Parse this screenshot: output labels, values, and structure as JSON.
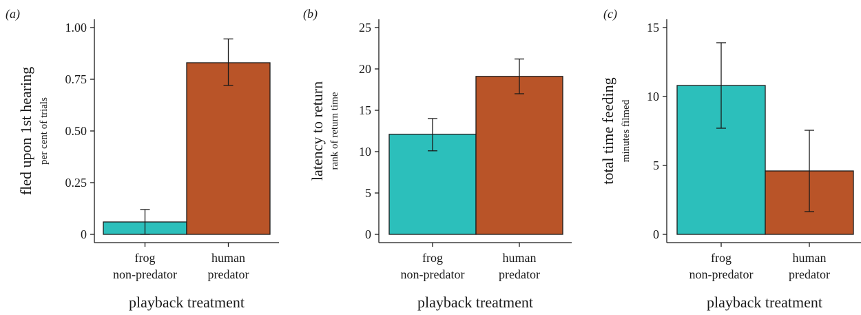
{
  "chart_data": [
    {
      "type": "bar",
      "panel_label": "(a)",
      "categories": [
        "frog\nnon-predator",
        "human\npredator"
      ],
      "values": [
        0.06,
        0.83
      ],
      "errors": [
        [
          0.0,
          0.12
        ],
        [
          0.72,
          0.945
        ]
      ],
      "colors": [
        "#2cbfbb",
        "#b95428"
      ],
      "xlabel": "playback treatment",
      "ylabel": "fled upon 1st hearing",
      "ylabel_sub": "per cent of trials",
      "ylim": [
        0,
        1.0
      ],
      "yticks": [
        0,
        0.25,
        0.5,
        0.75,
        1.0
      ],
      "ytick_labels": [
        "0",
        "0.25",
        "0.50",
        "0.75",
        "1.00"
      ]
    },
    {
      "type": "bar",
      "panel_label": "(b)",
      "categories": [
        "frog\nnon-predator",
        "human\npredator"
      ],
      "values": [
        12.1,
        19.1
      ],
      "errors": [
        [
          10.1,
          14.0
        ],
        [
          17.0,
          21.2
        ]
      ],
      "colors": [
        "#2cbfbb",
        "#b95428"
      ],
      "xlabel": "playback treatment",
      "ylabel": "latency to return",
      "ylabel_sub": "rank of return time",
      "ylim": [
        0,
        25
      ],
      "yticks": [
        0,
        5,
        10,
        15,
        20,
        25
      ],
      "ytick_labels": [
        "0",
        "5",
        "10",
        "15",
        "20",
        "25"
      ]
    },
    {
      "type": "bar",
      "panel_label": "(c)",
      "categories": [
        "frog\nnon-predator",
        "human\npredator"
      ],
      "values": [
        10.8,
        4.6
      ],
      "errors": [
        [
          7.7,
          13.9
        ],
        [
          1.65,
          7.55
        ]
      ],
      "colors": [
        "#2cbfbb",
        "#b95428"
      ],
      "xlabel": "playback treatment",
      "ylabel": "total time feeding",
      "ylabel_sub": "minutes filmed",
      "ylim": [
        0,
        15
      ],
      "yticks": [
        0,
        5,
        10,
        15
      ],
      "ytick_labels": [
        "0",
        "5",
        "10",
        "15"
      ]
    }
  ]
}
